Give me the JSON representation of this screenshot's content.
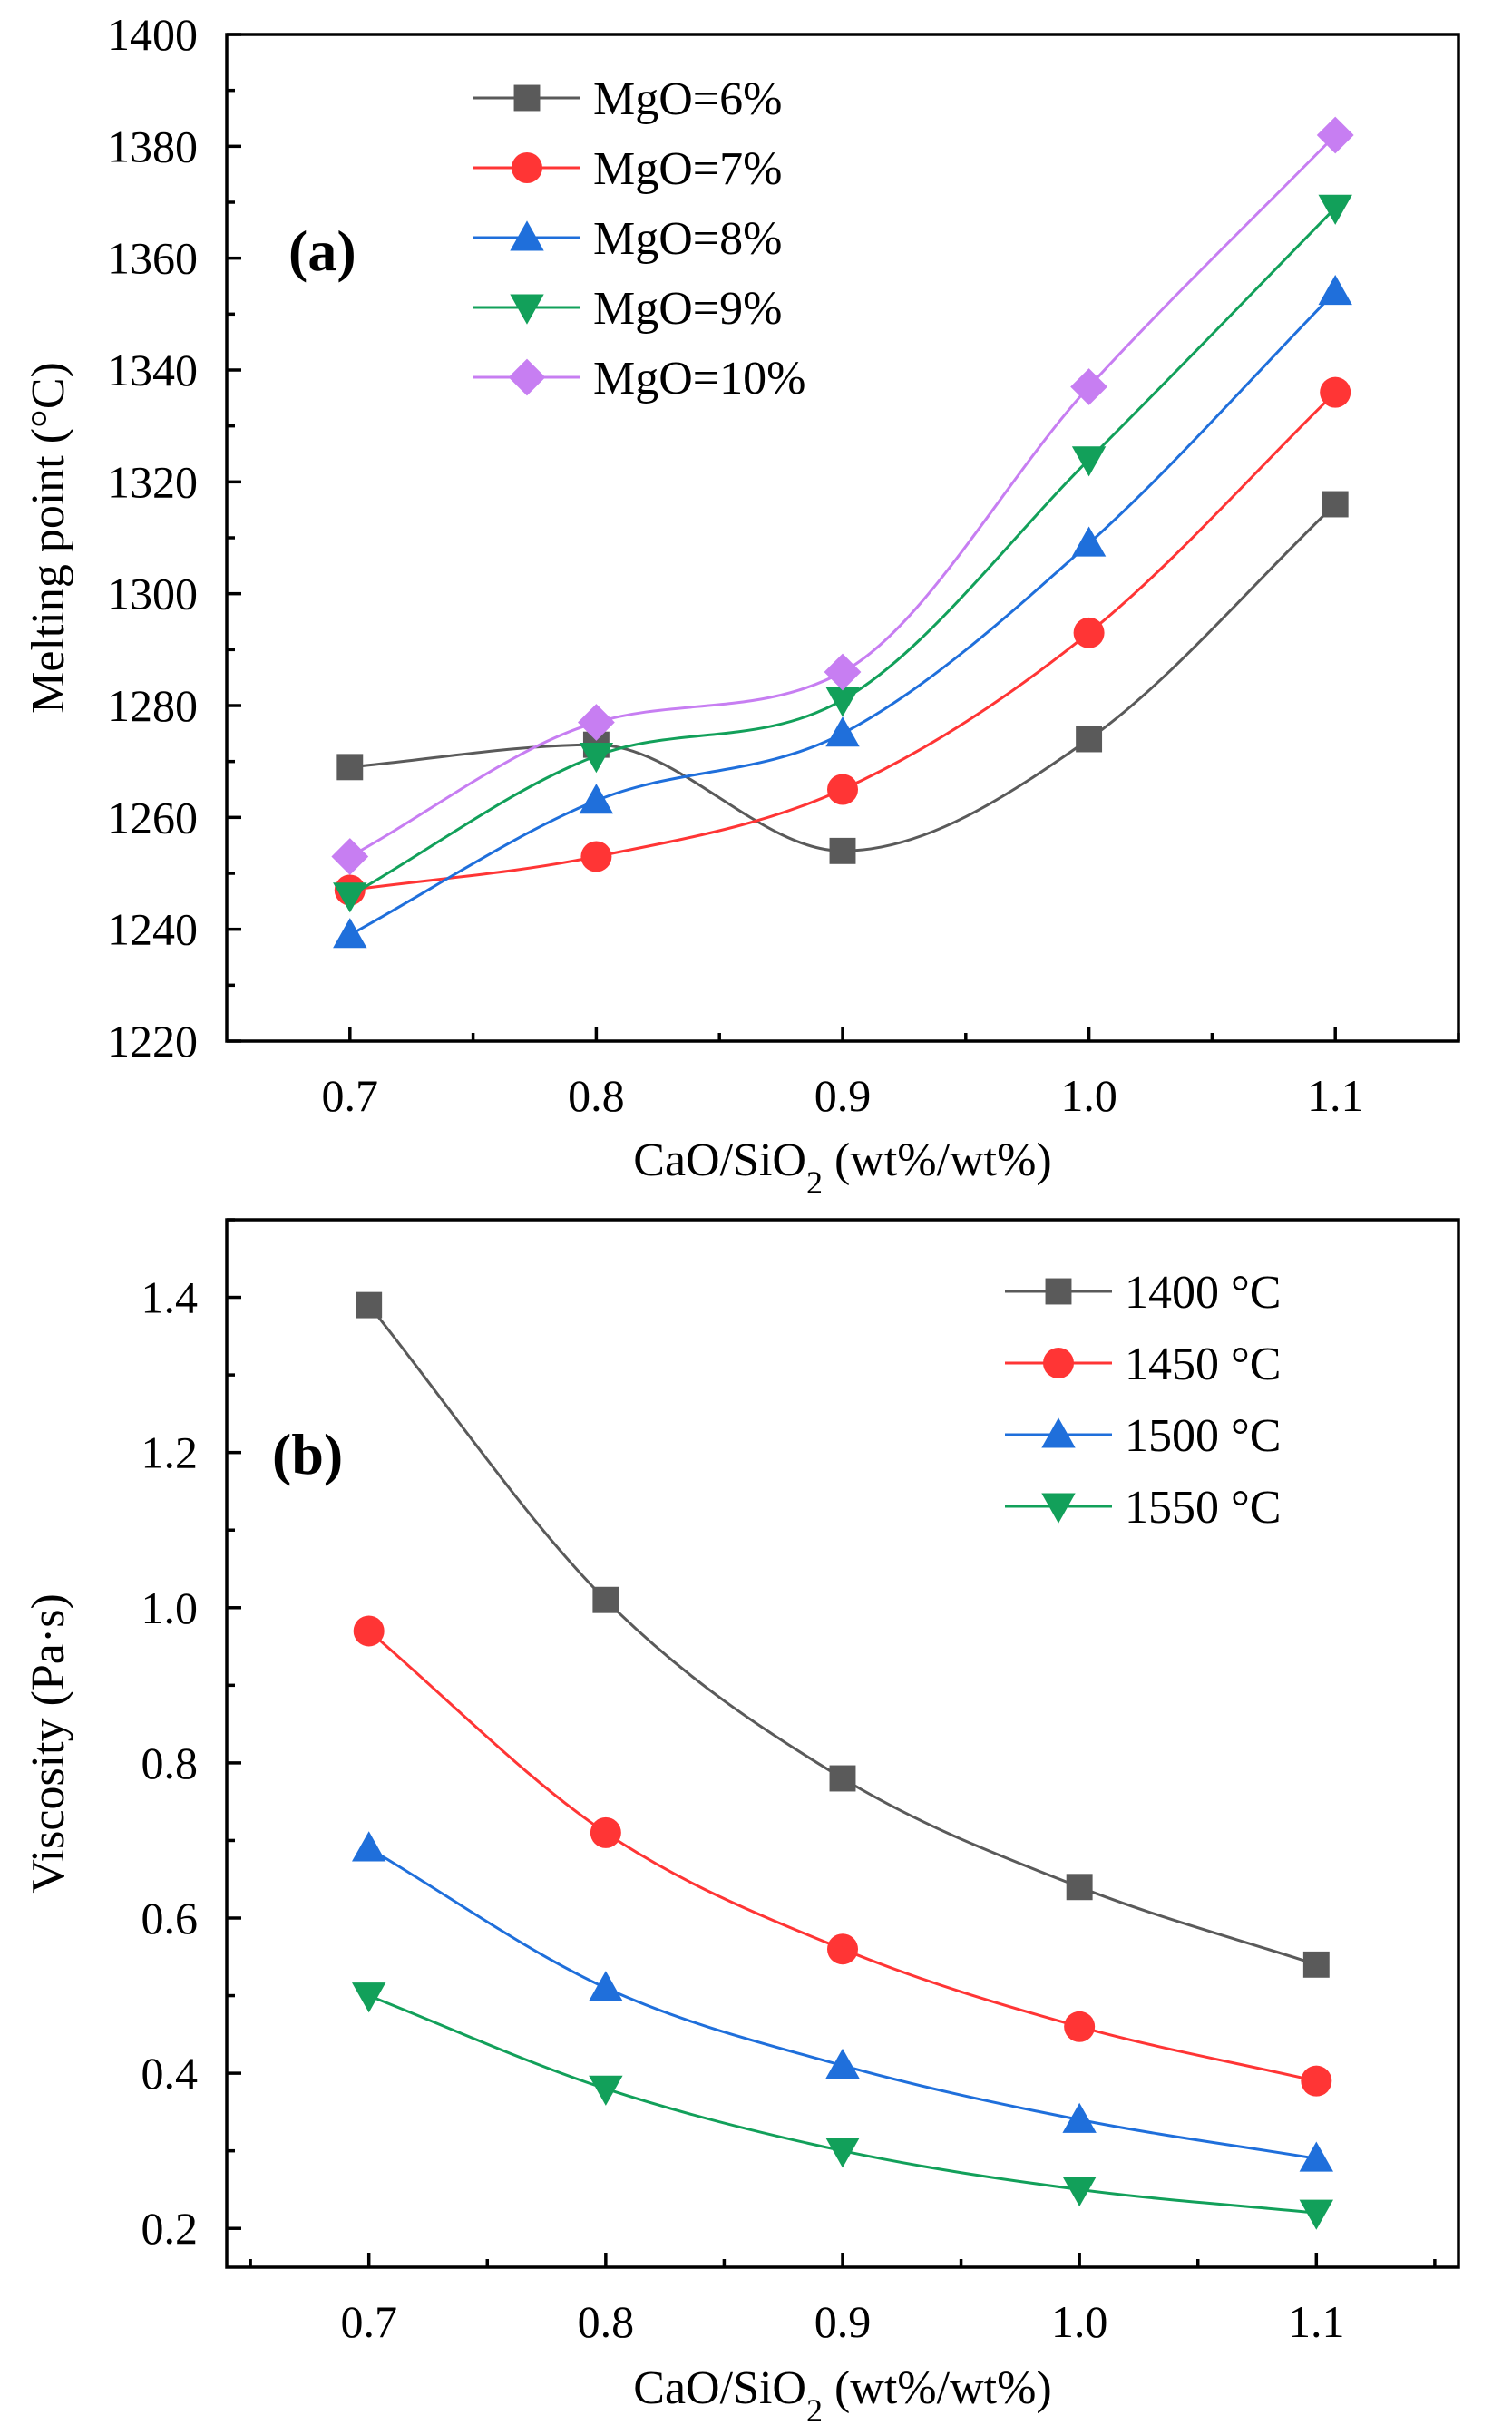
{
  "chart_data": [
    {
      "type": "line",
      "panel_label": "(a)",
      "xlabel_main": "CaO/SiO",
      "xlabel_sub": "2",
      "xlabel_tail": " (wt%/wt%)",
      "ylabel": "Melting point (°C)",
      "x": [
        0.7,
        0.8,
        0.9,
        1.0,
        1.1
      ],
      "x_tick_labels": [
        "0.7",
        "0.8",
        "0.9",
        "1.0",
        "1.1"
      ],
      "xlim": [
        0.65,
        1.15
      ],
      "ylim": [
        1220,
        1400
      ],
      "y_ticks": [
        1220,
        1240,
        1260,
        1280,
        1300,
        1320,
        1340,
        1360,
        1380,
        1400
      ],
      "y_tick_labels": [
        "1220",
        "1240",
        "1260",
        "1280",
        "1300",
        "1320",
        "1340",
        "1360",
        "1380",
        "1400"
      ],
      "legend_position": "top-left",
      "series": [
        {
          "name": "MgO=6%",
          "marker": "square",
          "color": "#5a5a5a",
          "values": [
            1269,
            1273,
            1254,
            1274,
            1316
          ]
        },
        {
          "name": "MgO=7%",
          "marker": "circle",
          "color": "#ff3535",
          "values": [
            1247,
            1253,
            1265,
            1293,
            1336
          ]
        },
        {
          "name": "MgO=8%",
          "marker": "triangle-up",
          "color": "#1f6fdb",
          "values": [
            1239,
            1263,
            1275,
            1309,
            1354
          ]
        },
        {
          "name": "MgO=9%",
          "marker": "triangle-down",
          "color": "#12a05a",
          "values": [
            1246,
            1271,
            1281,
            1324,
            1369
          ]
        },
        {
          "name": "MgO=10%",
          "marker": "diamond",
          "color": "#c77ef2",
          "values": [
            1253,
            1277,
            1286,
            1337,
            1382
          ]
        }
      ]
    },
    {
      "type": "line",
      "panel_label": "(b)",
      "xlabel_main": "CaO/SiO",
      "xlabel_sub": "2",
      "xlabel_tail": " (wt%/wt%)",
      "ylabel": "Viscosity (Pa·s)",
      "x": [
        0.7,
        0.8,
        0.9,
        1.0,
        1.1
      ],
      "x_tick_labels": [
        "0.7",
        "0.8",
        "0.9",
        "1.0",
        "1.1"
      ],
      "xlim": [
        0.64,
        1.16
      ],
      "ylim": [
        0.15,
        1.5
      ],
      "y_ticks": [
        0.2,
        0.4,
        0.6,
        0.8,
        1.0,
        1.2,
        1.4
      ],
      "y_tick_labels": [
        "0.2",
        "0.4",
        "0.6",
        "0.8",
        "1.0",
        "1.2",
        "1.4"
      ],
      "legend_position": "top-right",
      "series": [
        {
          "name": "1400 °C",
          "marker": "square",
          "color": "#5a5a5a",
          "values": [
            1.39,
            1.01,
            0.78,
            0.64,
            0.54
          ]
        },
        {
          "name": "1450 °C",
          "marker": "circle",
          "color": "#ff3535",
          "values": [
            0.97,
            0.71,
            0.56,
            0.46,
            0.39
          ]
        },
        {
          "name": "1500 °C",
          "marker": "triangle-up",
          "color": "#1f6fdb",
          "values": [
            0.69,
            0.51,
            0.41,
            0.34,
            0.29
          ]
        },
        {
          "name": "1550 °C",
          "marker": "triangle-down",
          "color": "#12a05a",
          "values": [
            0.5,
            0.38,
            0.3,
            0.25,
            0.22
          ]
        }
      ]
    }
  ]
}
